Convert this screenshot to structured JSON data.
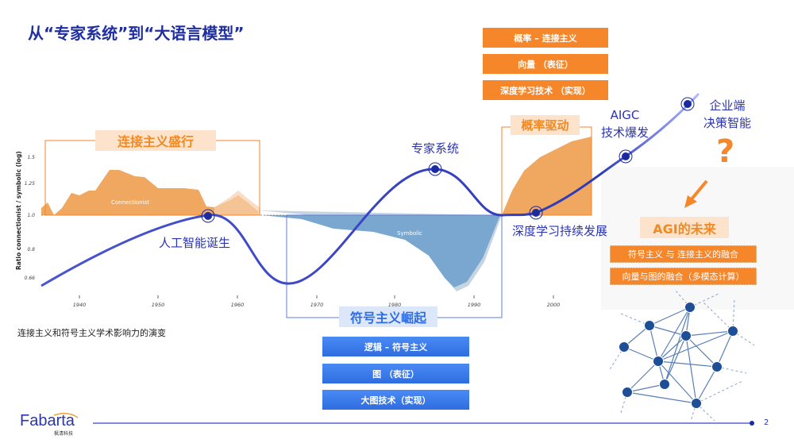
{
  "title": "从“专家系统”到“大语言模型”",
  "chart_data": {
    "type": "area",
    "ylabel": "Ratio connectionist / symbolic (log)",
    "yticks": [
      "1.5",
      "1.25",
      "1.0",
      "0.8",
      "0.66"
    ],
    "xticks": [
      "1940",
      "1950",
      "1960",
      "1970",
      "1980",
      "1990",
      "2000"
    ],
    "series": [
      {
        "name": "Connectionist"
      },
      {
        "name": "Symbolic"
      }
    ],
    "caption": "连接主义和符号主义学术影响力的演变"
  },
  "periods": {
    "connectionist": "连接主义盛行",
    "symbolic": "符号主义崛起",
    "probability": "概率驱动"
  },
  "milestones": {
    "ai_birth": "人工智能诞生",
    "expert": "专家系统",
    "deep": "深度学习持续发展",
    "aigc1": "AIGC",
    "aigc2": "技术爆发",
    "ent1": "企业端",
    "ent2": "决策智能"
  },
  "orange_buttons": [
    "概率 – 连接主义",
    "向量 （表征）",
    "深度学习技术 （实现）"
  ],
  "blue_buttons": [
    "逻辑 – 符号主义",
    "图 （表征）",
    "大图技术（实现）"
  ],
  "agi": {
    "title": "AGI的未来",
    "question": "?",
    "items": [
      "符号主义 与 连接主义的融合",
      "向量与图的融合（多模态计算）"
    ]
  },
  "footer": {
    "logo": "Fabarta",
    "logo_sub": "枫清科技",
    "page": "2"
  },
  "colors": {
    "accent_orange": "#f5862a",
    "accent_blue": "#2f6de0",
    "curve": "#3a3fc0",
    "title": "#1f2fa0"
  }
}
